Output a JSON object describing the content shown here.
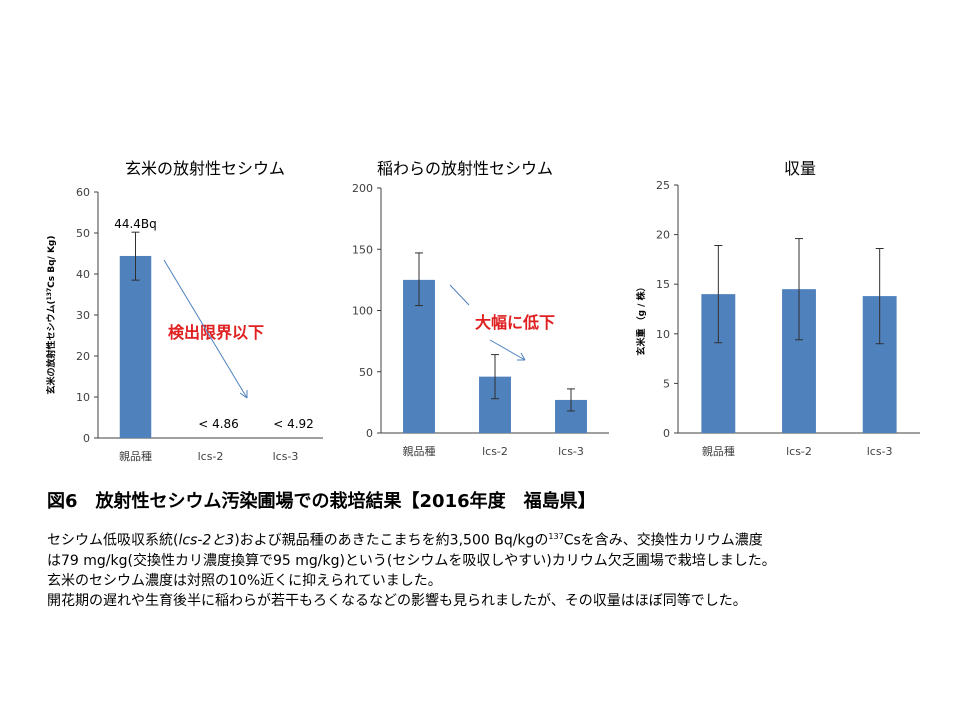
{
  "chart_data": [
    {
      "type": "bar",
      "title": "玄米の放射性セシウム",
      "ylabel_parts": [
        "玄米の放射性セシウム(",
        "137",
        "Cs Bq/ Kg)"
      ],
      "categories": [
        "親品種",
        "lcs-2",
        "lcs-3"
      ],
      "values": [
        44.4,
        null,
        null
      ],
      "errors": [
        [
          38.5,
          50.2
        ],
        null,
        null
      ],
      "ylim": [
        0,
        60
      ],
      "yticks": [
        0,
        10,
        20,
        30,
        40,
        50,
        60
      ],
      "bar_labels": [
        "44.4Bq",
        "< 4.86",
        "< 4.92"
      ],
      "annotation": "検出限界以下",
      "color": "#4f81bd"
    },
    {
      "type": "bar",
      "title": "稲わらの放射性セシウム",
      "categories": [
        "親品種",
        "lcs-2",
        "lcs-3"
      ],
      "values": [
        125,
        46,
        27
      ],
      "errors": [
        [
          104,
          147
        ],
        [
          28,
          64
        ],
        [
          18,
          36
        ]
      ],
      "ylim": [
        0,
        200
      ],
      "yticks": [
        0,
        50,
        100,
        150,
        200
      ],
      "annotation": "大幅に低下",
      "color": "#4f81bd"
    },
    {
      "type": "bar",
      "title": "収量",
      "ylabel": "玄米重 （g / 株）",
      "categories": [
        "親品種",
        "lcs-2",
        "lcs-3"
      ],
      "values": [
        14,
        14.5,
        13.8
      ],
      "errors": [
        [
          9.1,
          18.9
        ],
        [
          9.4,
          19.6
        ],
        [
          9.0,
          18.6
        ]
      ],
      "ylim": [
        0,
        25
      ],
      "yticks": [
        0,
        5,
        10,
        15,
        20,
        25
      ],
      "color": "#4f81bd"
    }
  ],
  "caption": "図6　放射性セシウム汚染圃場での栽培結果【2016年度　福島県】",
  "description": {
    "line1_pre": "セシウム低吸収系統(",
    "line1_italic": "lcs-2と3",
    "line1_mid": ")および親品種のあきたこまちを約3,500 Bq/kgの",
    "line1_sup": "137",
    "line1_post": "Csを含み、交換性カリウム濃度",
    "line2": "は79 mg/kg(交換性カリ濃度換算で95 mg/kg)という(セシウムを吸収しやすい)カリウム欠乏圃場で栽培しました。",
    "line3": "玄米のセシウム濃度は対照の10%近くに抑えられていました。",
    "line4": "開花期の遅れや生育後半に稲わらが若干もろくなるなどの影響も見られましたが、その収量はほぼ同等でした。"
  }
}
